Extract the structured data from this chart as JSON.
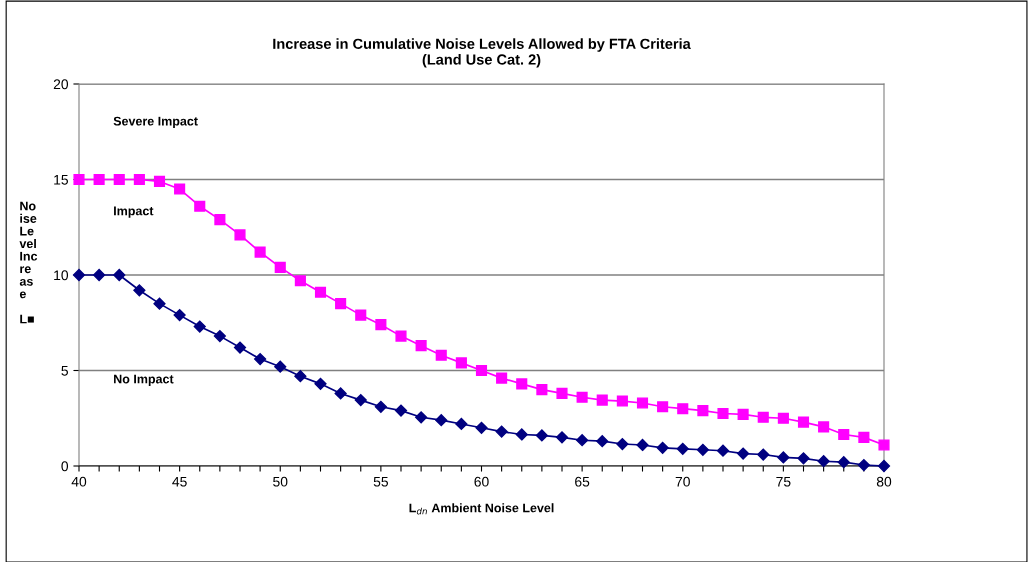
{
  "chart_data": {
    "type": "line",
    "title": "Increase in Cumulative Noise Levels Allowed by FTA Criteria\n(Land Use Cat. 2)",
    "xlabel": "L$_{dn}$ Ambient Noise Level",
    "ylabel": "No\nise\nLe\nvel\nInc\nre\nas\ne\n\nL■",
    "x": [
      40,
      41,
      42,
      43,
      44,
      45,
      46,
      47,
      48,
      49,
      50,
      51,
      52,
      53,
      54,
      55,
      56,
      57,
      58,
      59,
      60,
      61,
      62,
      63,
      64,
      65,
      66,
      67,
      68,
      69,
      70,
      71,
      72,
      73,
      74,
      75,
      76,
      77,
      78,
      79,
      80
    ],
    "series": [
      {
        "color": "#ff00ff",
        "marker": "square",
        "values": [
          15,
          15,
          15,
          15,
          14.9,
          14.5,
          13.6,
          12.9,
          12.1,
          11.2,
          10.4,
          9.7,
          9.1,
          8.5,
          7.9,
          7.4,
          6.8,
          6.3,
          5.8,
          5.4,
          5.0,
          4.6,
          4.3,
          4.0,
          3.8,
          3.6,
          3.45,
          3.4,
          3.3,
          3.1,
          3.0,
          2.9,
          2.75,
          2.7,
          2.55,
          2.5,
          2.3,
          2.05,
          1.65,
          1.5,
          1.1
        ]
      },
      {
        "color": "#000080",
        "marker": "diamond",
        "values": [
          10,
          10,
          10,
          9.2,
          8.5,
          7.9,
          7.3,
          6.8,
          6.2,
          5.6,
          5.2,
          4.7,
          4.3,
          3.8,
          3.45,
          3.1,
          2.9,
          2.55,
          2.4,
          2.2,
          2.0,
          1.8,
          1.65,
          1.6,
          1.5,
          1.35,
          1.3,
          1.15,
          1.1,
          0.95,
          0.9,
          0.85,
          0.8,
          0.65,
          0.6,
          0.45,
          0.4,
          0.25,
          0.2,
          0.05,
          0
        ]
      }
    ],
    "annotations": [
      "Severe Impact",
      "Impact",
      "No Impact"
    ],
    "xlim": [
      40,
      80
    ],
    "xticks": [
      40,
      {
        "value": 41,
        "label": null
      },
      {
        "value": 42,
        "label": null
      },
      {
        "value": 43,
        "label": null
      },
      {
        "value": 44,
        "label": null
      },
      45,
      {
        "value": 46,
        "label": null
      },
      {
        "value": 47,
        "label": null
      },
      {
        "value": 48,
        "label": null
      },
      {
        "value": 49,
        "label": null
      },
      50,
      {
        "value": 51,
        "label": null
      },
      {
        "value": 52,
        "label": null
      },
      {
        "value": 53,
        "label": null
      },
      {
        "value": 54,
        "label": null
      },
      55,
      {
        "value": 56,
        "label": null
      },
      {
        "value": 57,
        "label": null
      },
      {
        "value": 58,
        "label": null
      },
      {
        "value": 59,
        "label": null
      },
      60,
      {
        "value": 61,
        "label": null
      },
      {
        "value": 62,
        "label": null
      },
      {
        "value": 63,
        "label": null
      },
      {
        "value": 64,
        "label": null
      },
      65,
      {
        "value": 66,
        "label": null
      },
      {
        "value": 67,
        "label": null
      },
      {
        "value": 68,
        "label": null
      },
      {
        "value": 69,
        "label": null
      },
      70,
      {
        "value": 71,
        "label": null
      },
      {
        "value": 72,
        "label": null
      },
      {
        "value": 73,
        "label": null
      },
      {
        "value": 74,
        "label": null
      },
      75,
      {
        "value": 76,
        "label": null
      },
      {
        "value": 77,
        "label": null
      },
      {
        "value": 78,
        "label": null
      },
      {
        "value": 79,
        "label": null
      },
      80
    ],
    "ylim": [
      0,
      20
    ],
    "yticks": [
      0,
      5,
      10,
      15,
      20
    ],
    "grid": "y",
    "line_style": "solid"
  }
}
